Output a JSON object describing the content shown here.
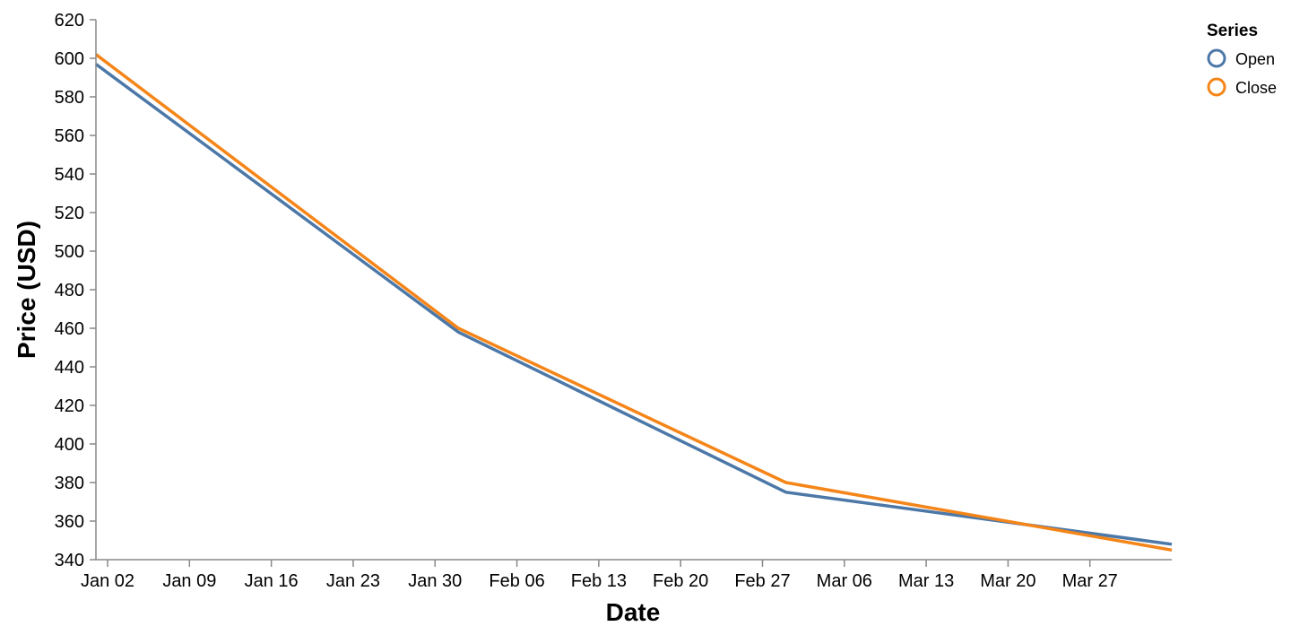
{
  "chart_data": {
    "type": "line",
    "xlabel": "Date",
    "ylabel": "Price (USD)",
    "ylim": [
      340,
      620
    ],
    "y_ticks": [
      340,
      360,
      380,
      400,
      420,
      440,
      460,
      480,
      500,
      520,
      540,
      560,
      580,
      600,
      620
    ],
    "x_range": [
      "2023-01-01",
      "2023-04-03"
    ],
    "x_ticks": [
      {
        "date": "2023-01-02",
        "label": "Jan 02"
      },
      {
        "date": "2023-01-09",
        "label": "Jan 09"
      },
      {
        "date": "2023-01-16",
        "label": "Jan 16"
      },
      {
        "date": "2023-01-23",
        "label": "Jan 23"
      },
      {
        "date": "2023-01-30",
        "label": "Jan 30"
      },
      {
        "date": "2023-02-06",
        "label": "Feb 06"
      },
      {
        "date": "2023-02-13",
        "label": "Feb 13"
      },
      {
        "date": "2023-02-20",
        "label": "Feb 20"
      },
      {
        "date": "2023-02-27",
        "label": "Feb 27"
      },
      {
        "date": "2023-03-06",
        "label": "Mar 06"
      },
      {
        "date": "2023-03-13",
        "label": "Mar 13"
      },
      {
        "date": "2023-03-20",
        "label": "Mar 20"
      },
      {
        "date": "2023-03-27",
        "label": "Mar 27"
      }
    ],
    "grid": false,
    "legend": {
      "title": "Series",
      "position": "top-right"
    },
    "series": [
      {
        "name": "Open",
        "color": "#4c78a8",
        "points": [
          {
            "x": "2023-01-01",
            "y": 597
          },
          {
            "x": "2023-02-01",
            "y": 458
          },
          {
            "x": "2023-03-01",
            "y": 375
          },
          {
            "x": "2023-04-03",
            "y": 348
          }
        ]
      },
      {
        "name": "Close",
        "color": "#f58518",
        "points": [
          {
            "x": "2023-01-01",
            "y": 602
          },
          {
            "x": "2023-02-01",
            "y": 460
          },
          {
            "x": "2023-03-01",
            "y": 380
          },
          {
            "x": "2023-04-03",
            "y": 345
          }
        ]
      }
    ]
  }
}
